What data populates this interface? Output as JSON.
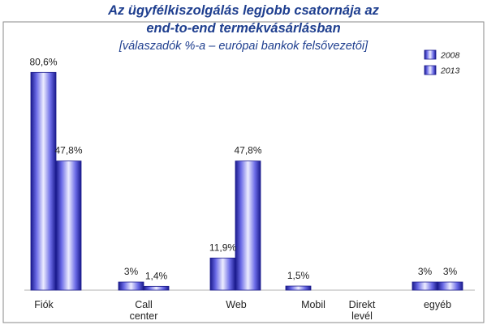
{
  "chart_data": {
    "type": "bar",
    "title_lines": [
      "Az ügyfélkiszolgálás legjobb csatornája az",
      "end-to-end termékvásárlásban"
    ],
    "subtitle": "[válaszadók %-a – európai bankok felsővezetői]",
    "categories": [
      {
        "lines": [
          "Fiók"
        ]
      },
      {
        "lines": [
          "Call",
          "center"
        ]
      },
      {
        "lines": [
          "Web"
        ]
      },
      {
        "lines": [
          "Mobil"
        ]
      },
      {
        "lines": [
          "Direkt",
          "levél"
        ]
      },
      {
        "lines": [
          "egyéb"
        ]
      }
    ],
    "series": [
      {
        "name": "2008",
        "values": [
          80.6,
          3,
          11.9,
          1.5,
          null,
          3
        ],
        "labels": [
          "80,6%",
          "3%",
          "11,9%",
          "1,5%",
          "",
          "3%"
        ]
      },
      {
        "name": "2013",
        "values": [
          47.8,
          1.4,
          47.8,
          null,
          null,
          3
        ],
        "labels": [
          "47,8%",
          "1,4%",
          "47,8%",
          "",
          "",
          "3%"
        ]
      }
    ],
    "ylim": [
      0,
      90
    ],
    "grid": false,
    "legend_position": "top-right"
  },
  "colors": {
    "bar_edge": "#1a1a8c",
    "bar_core": "#7070e8",
    "bar_light": "#ededff",
    "title": "#1f3f8f",
    "frame": "#8a8a8a"
  }
}
